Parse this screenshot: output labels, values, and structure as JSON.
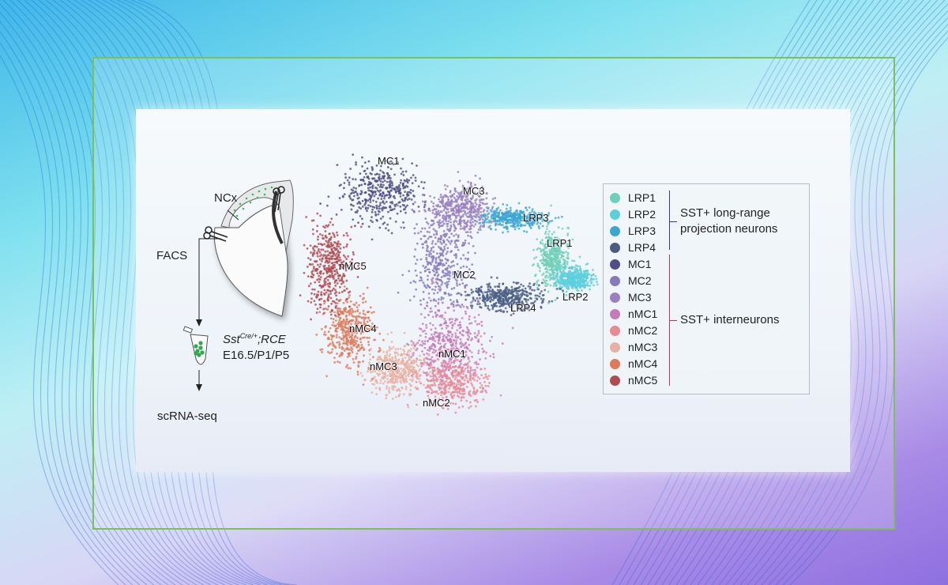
{
  "workflow": {
    "region_label": "NCx",
    "sort_label": "FACS",
    "genotype_main": "Sst",
    "genotype_sup": "Cre/+",
    "genotype_suffix": ";RCE",
    "ages": "E16.5/P1/P5",
    "method": "scRNA-seq",
    "cell_color": "#2fa84f"
  },
  "clusters": [
    {
      "name": "LRP1",
      "color": "#6fcfb8"
    },
    {
      "name": "LRP2",
      "color": "#5ccfdc"
    },
    {
      "name": "LRP3",
      "color": "#3ea6d2"
    },
    {
      "name": "LRP4",
      "color": "#4a5c82"
    },
    {
      "name": "MC1",
      "color": "#4d4f86"
    },
    {
      "name": "MC2",
      "color": "#8878be"
    },
    {
      "name": "MC3",
      "color": "#9a80c0"
    },
    {
      "name": "nMC1",
      "color": "#c77ab8"
    },
    {
      "name": "nMC2",
      "color": "#e88a96"
    },
    {
      "name": "nMC3",
      "color": "#e8b0a0"
    },
    {
      "name": "nMC4",
      "color": "#dd7a5a"
    },
    {
      "name": "nMC5",
      "color": "#b04a50"
    }
  ],
  "groups": [
    {
      "label_line1": "SST+ long-range",
      "label_line2": "projection neurons",
      "color": "#2b3aa8"
    },
    {
      "label_line1": "SST+ interneurons",
      "label_line2": "",
      "color": "#d03040"
    }
  ]
}
